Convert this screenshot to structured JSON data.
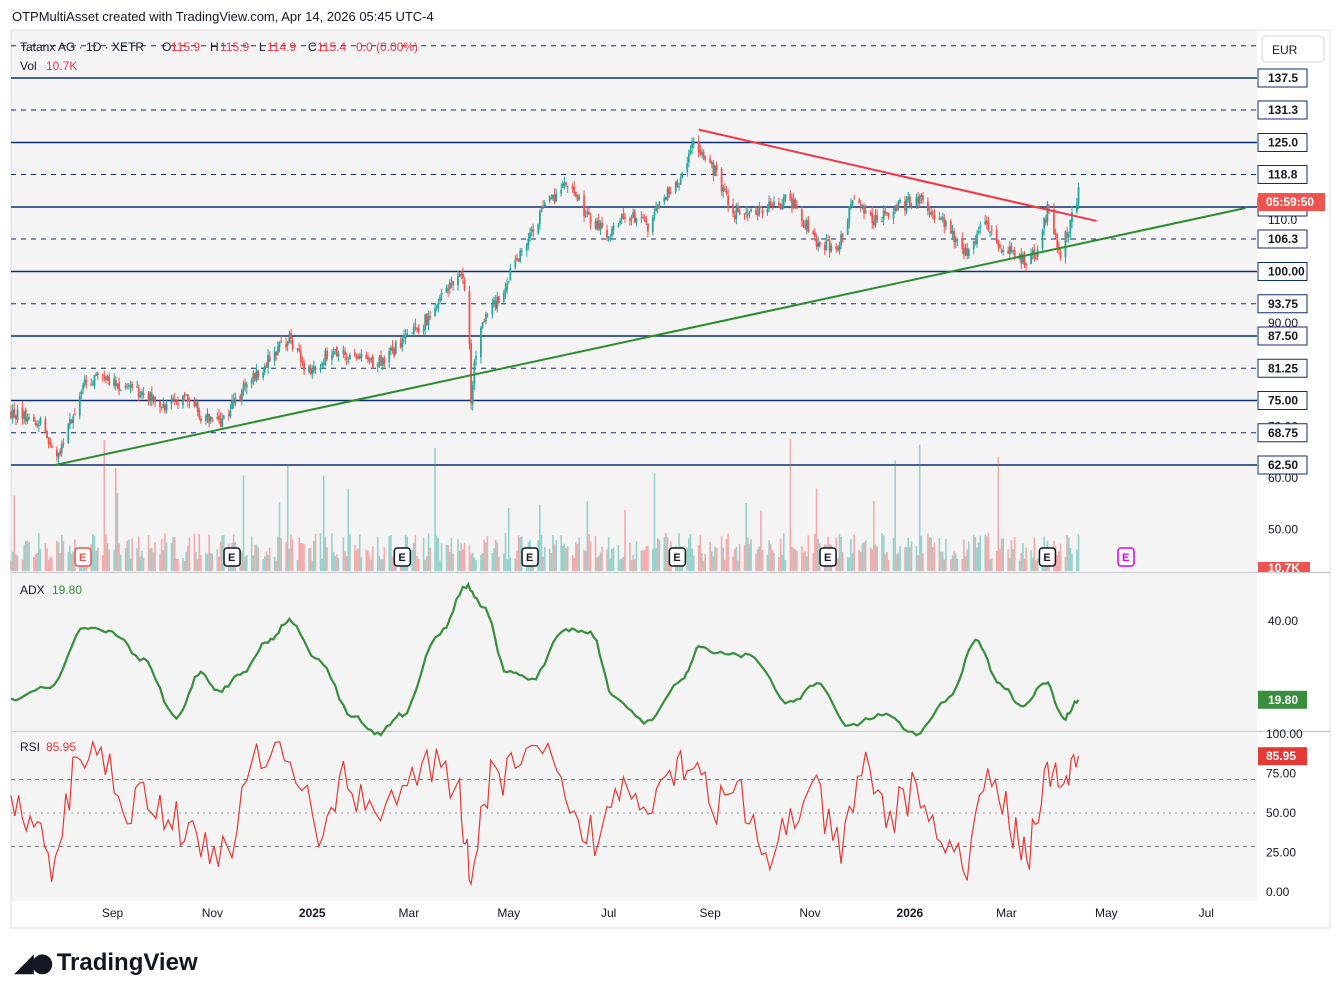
{
  "header": {
    "text": "OTPMultiAsset created with TradingView.com, Apr 14, 2026 05:45 UTC-4"
  },
  "legend": {
    "symbol": "Tatanx AG · 1D · XETR",
    "o_label": "O",
    "o_val": "115.9",
    "h_label": "H",
    "h_val": "115.9",
    "l_label": "L",
    "l_val": "114.9",
    "c_label": "C",
    "c_val": "115.4",
    "change": "0.0 (0.00%)",
    "vol_label": "Vol",
    "vol_val": "10.7K"
  },
  "currency": "EUR",
  "footer": {
    "logo": "TradingView"
  },
  "colors": {
    "up": "#26a69a",
    "down": "#ef5350",
    "hline": "#0d2e6e",
    "trend_up": "#2e8b2e",
    "trend_down": "#f23645",
    "adx": "#388e3c",
    "rsi": "#e53935"
  },
  "chart_data": [
    {
      "type": "candlestick",
      "panel": "price",
      "currency": "EUR",
      "x_ticks": [
        "Sep",
        "Nov",
        "2025",
        "Mar",
        "May",
        "Jul",
        "Sep",
        "Nov",
        "2026",
        "Mar",
        "May",
        "Jul"
      ],
      "y_ticks": [
        "110.0",
        "90.00",
        "70.00",
        "60.00",
        "50.00"
      ],
      "ylim": [
        45,
        140
      ],
      "levels": [
        {
          "value": 137.5,
          "label": "137.5",
          "style": "solid"
        },
        {
          "value": 131.3,
          "label": "131.3",
          "style": "dashed"
        },
        {
          "value": 125.0,
          "label": "125.0",
          "style": "solid"
        },
        {
          "value": 118.8,
          "label": "118.8",
          "style": "dashed"
        },
        {
          "value": 112.5,
          "label": "112.5",
          "style": "solid"
        },
        {
          "value": 106.3,
          "label": "106.3",
          "style": "dashed"
        },
        {
          "value": 100.0,
          "label": "100.00",
          "style": "solid"
        },
        {
          "value": 93.75,
          "label": "93.75",
          "style": "dashed"
        },
        {
          "value": 87.5,
          "label": "87.50",
          "style": "solid"
        },
        {
          "value": 81.25,
          "label": "81.25",
          "style": "dashed"
        },
        {
          "value": 75.0,
          "label": "75.00",
          "style": "solid"
        },
        {
          "value": 68.75,
          "label": "68.75",
          "style": "dashed"
        },
        {
          "value": 62.5,
          "label": "62.50",
          "style": "solid"
        }
      ],
      "top_dashed_level": 143.75,
      "last_price_label": "05:59:50",
      "volume_label": "10.7K",
      "path_points": [
        [
          "2024-07-01",
          72.5
        ],
        [
          "2024-07-20",
          71
        ],
        [
          "2024-07-28",
          62.5
        ],
        [
          "2024-08-05",
          70
        ],
        [
          "2024-08-15",
          78
        ],
        [
          "2024-08-26",
          80
        ],
        [
          "2024-09-10",
          77
        ],
        [
          "2024-09-25",
          76
        ],
        [
          "2024-10-05",
          73
        ],
        [
          "2024-10-15",
          77
        ],
        [
          "2024-10-25",
          72
        ],
        [
          "2024-11-05",
          70.5
        ],
        [
          "2024-11-15",
          75
        ],
        [
          "2024-11-28",
          80
        ],
        [
          "2024-12-10",
          85
        ],
        [
          "2024-12-18",
          87
        ],
        [
          "2024-12-31",
          80
        ],
        [
          "2025-01-12",
          85
        ],
        [
          "2025-01-25",
          83
        ],
        [
          "2025-02-10",
          82.5
        ],
        [
          "2025-02-25",
          86
        ],
        [
          "2025-03-10",
          90
        ],
        [
          "2025-03-25",
          97
        ],
        [
          "2025-04-01",
          98.5
        ],
        [
          "2025-04-06",
          96
        ],
        [
          "2025-04-08",
          75
        ],
        [
          "2025-04-12",
          88
        ],
        [
          "2025-04-25",
          95
        ],
        [
          "2025-05-10",
          105
        ],
        [
          "2025-05-22",
          112
        ],
        [
          "2025-06-05",
          117
        ],
        [
          "2025-06-20",
          110
        ],
        [
          "2025-07-01",
          107
        ],
        [
          "2025-07-12",
          111
        ],
        [
          "2025-07-25",
          109
        ],
        [
          "2025-08-05",
          115
        ],
        [
          "2025-08-15",
          118
        ],
        [
          "2025-08-22",
          125
        ],
        [
          "2025-08-28",
          122
        ],
        [
          "2025-09-05",
          119
        ],
        [
          "2025-09-15",
          111
        ],
        [
          "2025-10-05",
          112
        ],
        [
          "2025-10-20",
          114
        ],
        [
          "2025-11-05",
          106
        ],
        [
          "2025-11-18",
          104
        ],
        [
          "2025-11-28",
          115
        ],
        [
          "2025-12-10",
          110
        ],
        [
          "2025-12-28",
          113
        ],
        [
          "2026-01-08",
          114
        ],
        [
          "2026-01-20",
          110
        ],
        [
          "2026-02-05",
          103.5
        ],
        [
          "2026-02-15",
          110
        ],
        [
          "2026-02-28",
          104
        ],
        [
          "2026-03-08",
          103
        ],
        [
          "2026-03-14",
          102
        ],
        [
          "2026-03-20",
          104
        ],
        [
          "2026-03-26",
          112
        ],
        [
          "2026-04-03",
          104
        ],
        [
          "2026-04-09",
          109
        ],
        [
          "2026-04-14",
          115.4
        ]
      ],
      "trendlines": [
        {
          "name": "support",
          "from": [
            "2024-07-28",
            62.5
          ],
          "to": [
            "2026-07-25",
            112.3
          ]
        },
        {
          "name": "resistance",
          "from": [
            "2025-08-25",
            127.5
          ],
          "to": [
            "2026-04-25",
            109.8
          ]
        }
      ],
      "earnings_markers": [
        "2024-08-14",
        "2024-11-13",
        "2025-02-25",
        "2025-05-14",
        "2025-08-12",
        "2025-11-12",
        "2026-03-26",
        "2026-05-13"
      ]
    },
    {
      "type": "line",
      "panel": "ADX",
      "name": "ADX",
      "last_value": 19.8,
      "last_value_label": "19.80",
      "y_ticks": [
        "40.00",
        "19.80"
      ],
      "x": [
        "2024-07-01",
        "2024-07-25",
        "2024-08-15",
        "2024-09-01",
        "2024-09-20",
        "2024-10-10",
        "2024-10-25",
        "2024-11-05",
        "2024-11-20",
        "2024-12-05",
        "2024-12-18",
        "2025-01-05",
        "2025-01-25",
        "2025-02-10",
        "2025-02-25",
        "2025-03-20",
        "2025-04-05",
        "2025-04-15",
        "2025-04-30",
        "2025-05-15",
        "2025-06-05",
        "2025-06-20",
        "2025-07-05",
        "2025-07-25",
        "2025-08-15",
        "2025-08-25",
        "2025-09-05",
        "2025-09-25",
        "2025-10-20",
        "2025-11-05",
        "2025-11-25",
        "2025-12-15",
        "2026-01-05",
        "2026-01-25",
        "2026-02-10",
        "2026-02-25",
        "2026-03-10",
        "2026-03-25",
        "2026-04-05",
        "2026-04-14"
      ],
      "y": [
        20,
        23,
        38,
        37,
        30,
        15,
        27,
        22,
        27,
        35,
        40,
        30,
        16,
        11,
        16,
        37,
        49,
        44,
        27,
        25,
        38,
        37,
        20,
        14,
        25,
        33,
        32,
        31,
        19,
        24,
        13,
        16,
        11,
        20,
        35,
        24,
        18,
        24,
        15,
        19.8
      ]
    },
    {
      "type": "line",
      "panel": "RSI",
      "name": "RSI",
      "last_value": 85.95,
      "last_value_label": "85.95",
      "y_ticks": [
        "100.00",
        "75.00",
        "50.00",
        "25.00",
        "0.00"
      ],
      "bands": [
        30,
        70
      ],
      "x": [
        "2024-07-01",
        "2024-07-15",
        "2024-07-28",
        "2024-08-10",
        "2024-08-25",
        "2024-09-10",
        "2024-09-25",
        "2024-10-10",
        "2024-10-25",
        "2024-11-10",
        "2024-11-28",
        "2024-12-15",
        "2025-01-05",
        "2025-01-20",
        "2025-02-05",
        "2025-02-25",
        "2025-03-15",
        "2025-04-01",
        "2025-04-08",
        "2025-04-20",
        "2025-05-05",
        "2025-05-25",
        "2025-06-10",
        "2025-06-25",
        "2025-07-10",
        "2025-07-25",
        "2025-08-10",
        "2025-08-22",
        "2025-09-05",
        "2025-09-20",
        "2025-10-05",
        "2025-10-20",
        "2025-11-05",
        "2025-11-20",
        "2025-12-05",
        "2025-12-20",
        "2026-01-05",
        "2026-01-20",
        "2026-02-05",
        "2026-02-20",
        "2026-03-05",
        "2026-03-15",
        "2026-03-26",
        "2026-04-05",
        "2026-04-14"
      ],
      "y": [
        55,
        40,
        12,
        90,
        88,
        55,
        60,
        45,
        30,
        25,
        85,
        90,
        40,
        70,
        55,
        65,
        80,
        60,
        10,
        70,
        80,
        85,
        40,
        35,
        70,
        60,
        80,
        85,
        55,
        60,
        15,
        50,
        60,
        25,
        80,
        45,
        70,
        30,
        20,
        75,
        40,
        25,
        80,
        60,
        85.95
      ]
    }
  ]
}
